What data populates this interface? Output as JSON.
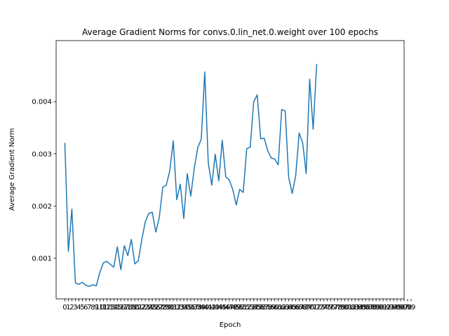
{
  "chart_data": {
    "type": "line",
    "title": "Average Gradient Norms for convs.0.lin_net.0.weight over 100 epochs",
    "xlabel": "Epoch",
    "ylabel": "Average Gradient Norm",
    "grid": false,
    "legend": "none",
    "xlim": [
      -2.5,
      97
    ],
    "ylim": [
      0.00022,
      0.00517
    ],
    "x_ticks": [
      0,
      1,
      2,
      3,
      4,
      5,
      6,
      7,
      8,
      9,
      10,
      11,
      12,
      13,
      14,
      15,
      16,
      17,
      18,
      19,
      20,
      21,
      22,
      23,
      24,
      25,
      26,
      27,
      28,
      29,
      30,
      31,
      32,
      33,
      34,
      35,
      36,
      37,
      38,
      39,
      40,
      41,
      42,
      43,
      44,
      45,
      46,
      47,
      48,
      49,
      50,
      51,
      52,
      53,
      54,
      55,
      56,
      57,
      58,
      59,
      60,
      61,
      62,
      63,
      64,
      65,
      66,
      67,
      68,
      69,
      70,
      71,
      72,
      73,
      74,
      75,
      76,
      77,
      78,
      79,
      80,
      81,
      82,
      83,
      84,
      85,
      86,
      87,
      88,
      89,
      90,
      91,
      92,
      93,
      94,
      95,
      96,
      97,
      98,
      99
    ],
    "y_ticks": [
      0.001,
      0.002,
      0.003,
      0.004
    ],
    "y_tick_labels": [
      "0.001",
      "0.002",
      "0.003",
      "0.004"
    ],
    "series": [
      {
        "color": "#1f77b4",
        "x": [
          0,
          1,
          2,
          3,
          4,
          5,
          6,
          7,
          8,
          9,
          10,
          11,
          12,
          13,
          14,
          15,
          16,
          17,
          18,
          19,
          20,
          21,
          22,
          23,
          24,
          25,
          26,
          27,
          28,
          29,
          30,
          31,
          32,
          33,
          34,
          35,
          36,
          37,
          38,
          39,
          40,
          41,
          42,
          43,
          44,
          45,
          46,
          47,
          48,
          49,
          50,
          51,
          52,
          53,
          54,
          55,
          56,
          57,
          58,
          59,
          60,
          61,
          62,
          63,
          64,
          65,
          66,
          67,
          68,
          69,
          70,
          71,
          72,
          73,
          74,
          75,
          76,
          77,
          78,
          79,
          80,
          81,
          82,
          83,
          84,
          85,
          86,
          87,
          88,
          89,
          90,
          91,
          92,
          93,
          94,
          95,
          96,
          97,
          98,
          99
        ],
        "values": [
          0.0032,
          0.00113,
          0.00194,
          0.00053,
          0.0005,
          0.00054,
          0.00048,
          0.00046,
          0.00049,
          0.00047,
          0.00073,
          0.00091,
          0.00094,
          0.00088,
          0.00083,
          0.00122,
          0.00078,
          0.00124,
          0.00105,
          0.00136,
          0.00089,
          0.00095,
          0.00136,
          0.0017,
          0.00186,
          0.00188,
          0.0015,
          0.00178,
          0.00236,
          0.0024,
          0.00268,
          0.00325,
          0.00212,
          0.00242,
          0.00176,
          0.00262,
          0.00219,
          0.00272,
          0.00312,
          0.00328,
          0.00457,
          0.00283,
          0.0024,
          0.00299,
          0.00248,
          0.00326,
          0.00256,
          0.0025,
          0.00232,
          0.00202,
          0.00232,
          0.00226,
          0.0031,
          0.00313,
          0.004,
          0.00413,
          0.00329,
          0.0033,
          0.00306,
          0.00292,
          0.0029,
          0.00279,
          0.00385,
          0.00382,
          0.00255,
          0.00224,
          0.00258,
          0.0034,
          0.00321,
          0.00262,
          0.00443,
          0.00347,
          0.00471,
          null,
          null,
          null,
          null,
          null,
          null,
          null,
          null,
          null,
          null,
          null,
          null,
          null,
          null,
          null,
          null,
          null,
          null,
          null,
          null,
          null,
          null,
          null,
          null,
          null,
          null,
          null
        ]
      }
    ]
  }
}
